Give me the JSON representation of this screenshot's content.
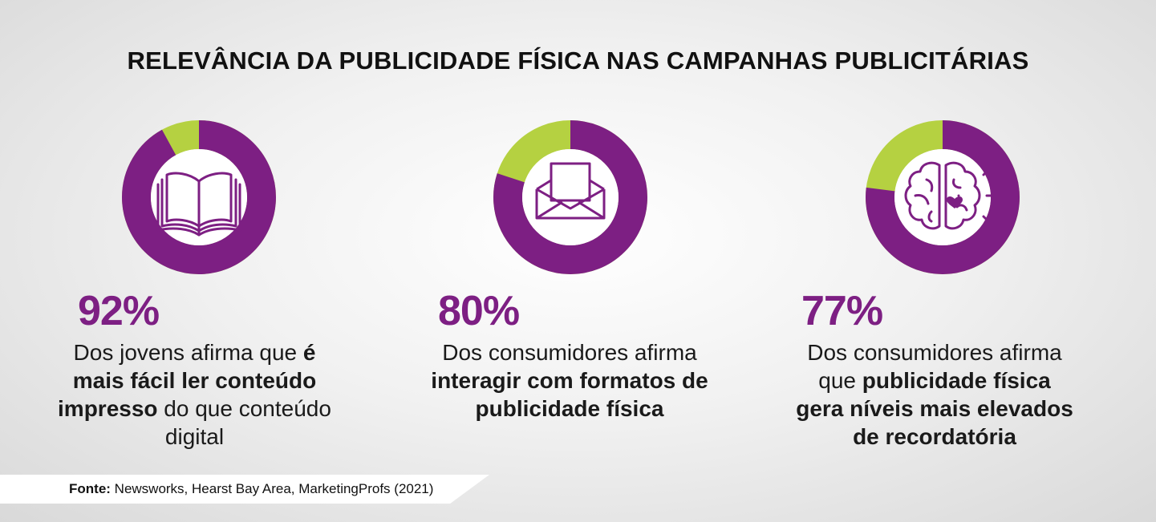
{
  "title": "RELEVÂNCIA DA PUBLICIDADE FÍSICA NAS CAMPANHAS PUBLICITÁRIAS",
  "colors": {
    "primary": "#7d1f83",
    "secondary": "#b5d141"
  },
  "stats": [
    {
      "percent_value": 92,
      "percent": "92%",
      "icon": "book-icon",
      "text": {
        "a": "Dos jovens afirma que ",
        "b": "é mais fácil ler conteúdo impresso",
        "c": " do que conteúdo digital"
      }
    },
    {
      "percent_value": 80,
      "percent": "80%",
      "icon": "envelope-icon",
      "text": {
        "a": "Dos consumidores afirma ",
        "b": "interagir com formatos de publicidade física",
        "c": ""
      }
    },
    {
      "percent_value": 77,
      "percent": "77%",
      "icon": "brain-heart-icon",
      "text": {
        "a": "Dos consumidores afirma que ",
        "b": "publicidade física gera níveis mais elevados de recordatória",
        "c": ""
      }
    }
  ],
  "source": {
    "label": "Fonte:",
    "text": " Newsworks, Hearst Bay Area, MarketingProfs (2021)"
  }
}
